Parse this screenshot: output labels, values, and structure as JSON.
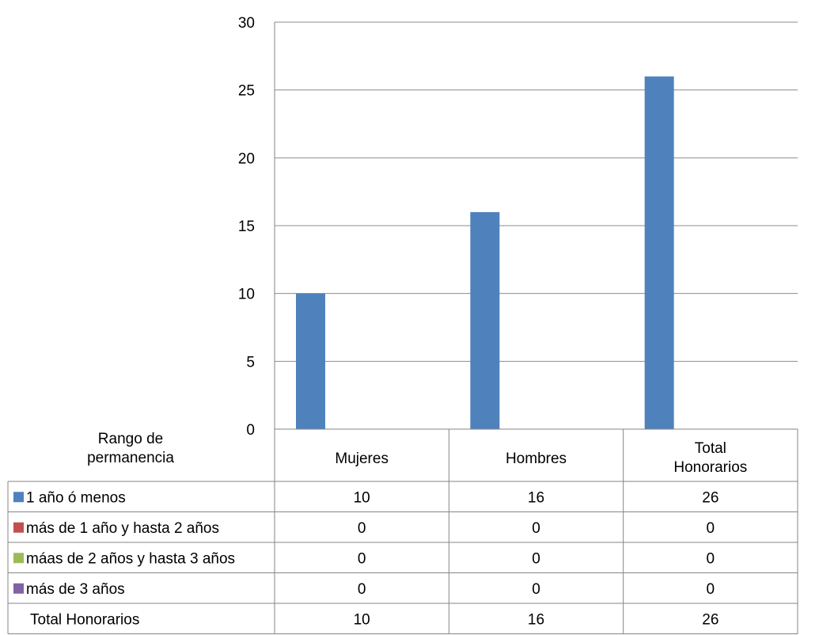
{
  "chart_data": {
    "type": "bar",
    "title": "",
    "xlabel": "",
    "ylabel": "",
    "ylim": [
      0,
      30
    ],
    "yticks": [
      0,
      5,
      10,
      15,
      20,
      25,
      30
    ],
    "grid": true,
    "legend_placement": "data-table",
    "categories": [
      "Mujeres",
      "Hombres",
      "Total Honorarios"
    ],
    "series": [
      {
        "name": "1 año ó menos",
        "color": "#4f81bd",
        "values": [
          10,
          16,
          26
        ]
      },
      {
        "name": "más de 1 año y hasta 2 años",
        "color": "#c0504d",
        "values": [
          0,
          0,
          0
        ]
      },
      {
        "name": "máas de 2 años y hasta 3 años",
        "color": "#9bbb59",
        "values": [
          0,
          0,
          0
        ]
      },
      {
        "name": "más de 3 años",
        "color": "#8064a2",
        "values": [
          0,
          0,
          0
        ]
      }
    ],
    "table": {
      "header_label": "Rango de permanencia",
      "total_row": {
        "name": "Total Honorarios",
        "values": [
          10,
          16,
          26
        ]
      }
    }
  }
}
